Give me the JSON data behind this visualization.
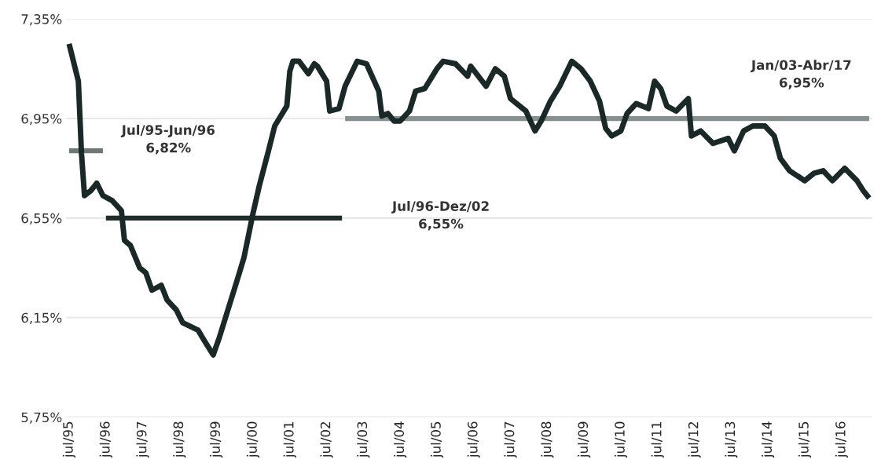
{
  "chart_data": {
    "type": "line",
    "ylim": [
      5.75,
      7.35
    ],
    "yticks": [
      {
        "value": 5.75,
        "label": "5,75%"
      },
      {
        "value": 6.15,
        "label": "6,15%"
      },
      {
        "value": 6.55,
        "label": "6,55%"
      },
      {
        "value": 6.95,
        "label": "6,95%"
      },
      {
        "value": 7.35,
        "label": "7,35%"
      }
    ],
    "xlim": [
      "1995-06",
      "2017-05"
    ],
    "xticks": [
      {
        "value": "1995-07",
        "label": "jul/95"
      },
      {
        "value": "1996-07",
        "label": "jul/96"
      },
      {
        "value": "1997-07",
        "label": "jul/97"
      },
      {
        "value": "1998-07",
        "label": "jul/98"
      },
      {
        "value": "1999-07",
        "label": "jul/99"
      },
      {
        "value": "2000-07",
        "label": "jul/00"
      },
      {
        "value": "2001-07",
        "label": "jul/01"
      },
      {
        "value": "2002-07",
        "label": "jul/02"
      },
      {
        "value": "2003-07",
        "label": "jul/03"
      },
      {
        "value": "2004-07",
        "label": "jul/04"
      },
      {
        "value": "2005-07",
        "label": "jul/05"
      },
      {
        "value": "2006-07",
        "label": "jul/06"
      },
      {
        "value": "2007-07",
        "label": "jul/07"
      },
      {
        "value": "2008-07",
        "label": "jul/08"
      },
      {
        "value": "2009-07",
        "label": "jul/09"
      },
      {
        "value": "2010-07",
        "label": "jul/10"
      },
      {
        "value": "2011-07",
        "label": "jul/11"
      },
      {
        "value": "2012-07",
        "label": "jul/12"
      },
      {
        "value": "2013-07",
        "label": "jul/13"
      },
      {
        "value": "2014-07",
        "label": "jul/14"
      },
      {
        "value": "2015-07",
        "label": "jul/15"
      },
      {
        "value": "2016-07",
        "label": "jul/16"
      }
    ],
    "grid": "y",
    "marker": "none",
    "line_style": "solid",
    "series": [
      {
        "color": "#1b2828",
        "x": [
          "1995-07",
          "1995-10",
          "1995-11",
          "1995-12",
          "1996-02",
          "1996-04",
          "1996-06",
          "1996-09",
          "1996-12",
          "1997-01",
          "1997-03",
          "1997-06",
          "1997-08",
          "1997-10",
          "1998-01",
          "1998-03",
          "1998-06",
          "1998-08",
          "1999-01",
          "1999-03",
          "1999-06",
          "1999-08",
          "1999-11",
          "2000-02",
          "2000-04",
          "2000-07",
          "2000-09",
          "2000-12",
          "2001-02",
          "2001-06",
          "2001-07",
          "2001-08",
          "2001-10",
          "2002-01",
          "2002-03",
          "2002-04",
          "2002-07",
          "2002-08",
          "2002-11",
          "2003-01",
          "2003-05",
          "2003-08",
          "2003-12",
          "2004-01",
          "2004-03",
          "2004-05",
          "2004-07",
          "2004-10",
          "2004-12",
          "2005-03",
          "2005-07",
          "2005-09",
          "2006-01",
          "2006-05",
          "2006-06",
          "2006-11",
          "2007-02",
          "2007-05",
          "2007-07",
          "2007-12",
          "2008-03",
          "2008-05",
          "2008-08",
          "2008-11",
          "2009-03",
          "2009-06",
          "2009-09",
          "2009-12",
          "2010-02",
          "2010-04",
          "2010-07",
          "2010-09",
          "2010-12",
          "2011-04",
          "2011-06",
          "2011-08",
          "2011-10",
          "2012-01",
          "2012-05",
          "2012-06",
          "2012-09",
          "2013-01",
          "2013-06",
          "2013-08",
          "2013-11",
          "2014-02",
          "2014-06",
          "2014-09",
          "2014-11",
          "2015-02",
          "2015-07",
          "2015-10",
          "2016-01",
          "2016-04",
          "2016-08",
          "2016-12",
          "2017-02",
          "2017-04"
        ],
        "values": [
          7.25,
          7.1,
          6.81,
          6.64,
          6.66,
          6.69,
          6.64,
          6.62,
          6.58,
          6.46,
          6.44,
          6.35,
          6.33,
          6.26,
          6.28,
          6.22,
          6.18,
          6.13,
          6.1,
          6.06,
          6.0,
          6.07,
          6.19,
          6.31,
          6.39,
          6.57,
          6.68,
          6.82,
          6.92,
          7.0,
          7.14,
          7.18,
          7.18,
          7.13,
          7.17,
          7.16,
          7.1,
          6.98,
          6.99,
          7.08,
          7.18,
          7.17,
          7.06,
          6.96,
          6.97,
          6.94,
          6.94,
          6.98,
          7.06,
          7.07,
          7.15,
          7.18,
          7.17,
          7.12,
          7.16,
          7.08,
          7.15,
          7.12,
          7.03,
          6.98,
          6.9,
          6.94,
          7.02,
          7.08,
          7.18,
          7.15,
          7.1,
          7.02,
          6.91,
          6.88,
          6.9,
          6.97,
          7.01,
          6.99,
          7.1,
          7.07,
          7.0,
          6.98,
          7.03,
          6.88,
          6.9,
          6.85,
          6.87,
          6.82,
          6.9,
          6.92,
          6.92,
          6.88,
          6.79,
          6.74,
          6.7,
          6.73,
          6.74,
          6.7,
          6.75,
          6.7,
          6.66,
          6.63
        ]
      },
      {
        "color": "#6e7878",
        "x": [
          "1995-07",
          "1996-06"
        ],
        "values": [
          6.82,
          6.82
        ]
      },
      {
        "color": "#1f2d2d",
        "x": [
          "1996-07",
          "2002-12"
        ],
        "values": [
          6.55,
          6.55
        ]
      },
      {
        "color": "#86918f",
        "x": [
          "2003-01",
          "2017-04"
        ],
        "values": [
          6.95,
          6.95
        ]
      }
    ],
    "annotations": [
      {
        "text": "Jul/95-Jun/96\n6,82%",
        "x": "1996-06",
        "y": 6.82
      },
      "Jul/96-Dez/02\n6,55%",
      {
        "text": "Jan/03-Abr/17\n6,95%",
        "x": "2017-04",
        "y": 6.95
      }
    ]
  }
}
